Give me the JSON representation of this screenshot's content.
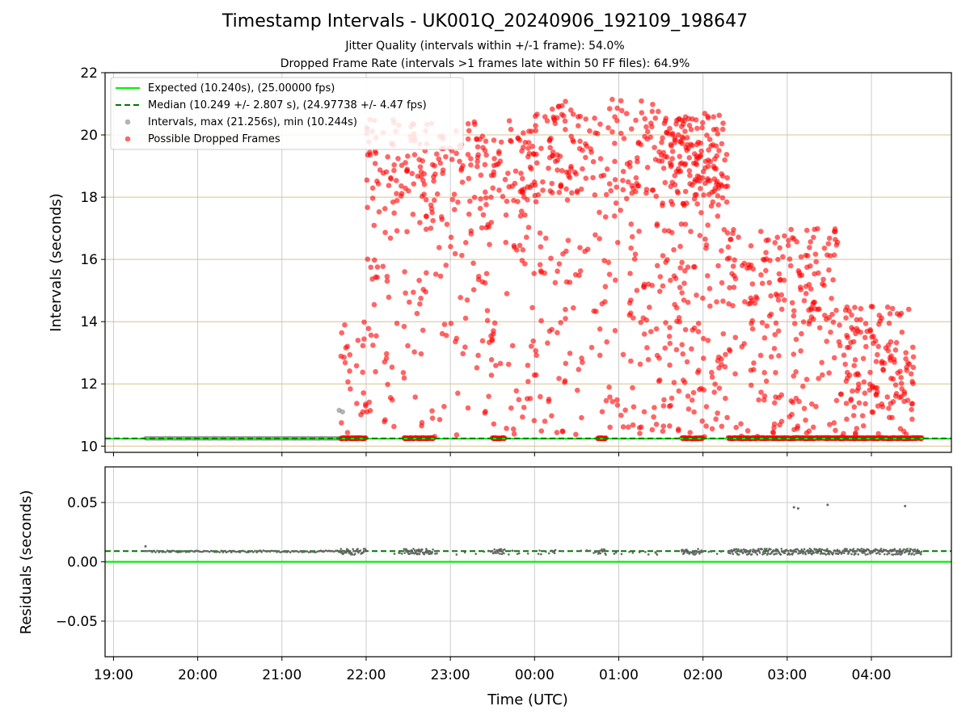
{
  "title": "Timestamp Intervals - UK001Q_20240906_192109_198647",
  "subtitles": [
    "Jitter Quality (intervals within +/-1 frame): 54.0%",
    "Dropped Frame Rate (intervals >1 frames late within 50 FF files): 64.9%"
  ],
  "colors": {
    "expected": "#00ee00",
    "median": "#007700",
    "intervals": "#999999",
    "dropped": "#ff0000",
    "hgrid_top": "#d6c38a",
    "grid": "#cccccc"
  },
  "chart_data": [
    {
      "type": "scatter",
      "panel": "intervals",
      "ylabel": "Intervals (seconds)",
      "xlabel": "",
      "ylim": [
        9.8,
        22
      ],
      "yticks": [
        "10",
        "12",
        "14",
        "16",
        "18",
        "20",
        "22"
      ],
      "xlim_hours": [
        18.9,
        28.95
      ],
      "grid": true,
      "legend_placement": "top-left",
      "legend": [
        "Expected (10.240s), (25.00000 fps)",
        "Median (10.249 +/- 2.807 s), (24.97738 +/- 4.47 fps)",
        "Intervals, max (21.256s), min (10.244s)",
        "Possible Dropped Frames"
      ],
      "expected_value": 10.24,
      "median_value": 10.249,
      "baseline_run_hours": [
        19.38,
        21.72
      ],
      "extra_gray_points": [
        {
          "x": 21.68,
          "y": 11.15
        },
        {
          "x": 21.72,
          "y": 11.1
        }
      ],
      "dropped_envelope": [
        {
          "start": 21.7,
          "end": 22.0,
          "max": 14.0
        },
        {
          "start": 22.0,
          "end": 24.0,
          "max": 20.5
        },
        {
          "start": 24.0,
          "end": 25.5,
          "max": 21.2
        },
        {
          "start": 25.5,
          "end": 26.3,
          "max": 20.7
        },
        {
          "start": 26.3,
          "end": 27.6,
          "max": 17.0
        },
        {
          "start": 27.6,
          "end": 28.5,
          "max": 14.5
        }
      ],
      "dropped_bands_near_baseline": [
        [
          21.7,
          22.0
        ],
        [
          22.45,
          22.8
        ],
        [
          23.5,
          23.65
        ],
        [
          24.75,
          24.85
        ],
        [
          25.75,
          26.0
        ],
        [
          26.3,
          28.6
        ]
      ]
    },
    {
      "type": "scatter",
      "panel": "residuals",
      "ylabel": "Residuals (seconds)",
      "xlabel": "Time (UTC)",
      "ylim": [
        -0.08,
        0.08
      ],
      "yticks": [
        "−0.05",
        "0.00",
        "0.05"
      ],
      "median_value": 0.009,
      "expected_value": 0.0,
      "outliers": [
        {
          "x": 19.38,
          "y": 0.013
        },
        {
          "x": 27.08,
          "y": 0.046
        },
        {
          "x": 27.13,
          "y": 0.045
        },
        {
          "x": 27.48,
          "y": 0.048
        },
        {
          "x": 28.4,
          "y": 0.047
        }
      ],
      "xtick_hours": [
        19,
        20,
        21,
        22,
        23,
        24,
        25,
        26,
        27,
        28
      ],
      "xtick_labels": [
        "19:00",
        "20:00",
        "21:00",
        "22:00",
        "23:00",
        "00:00",
        "01:00",
        "02:00",
        "03:00",
        "04:00"
      ]
    }
  ]
}
